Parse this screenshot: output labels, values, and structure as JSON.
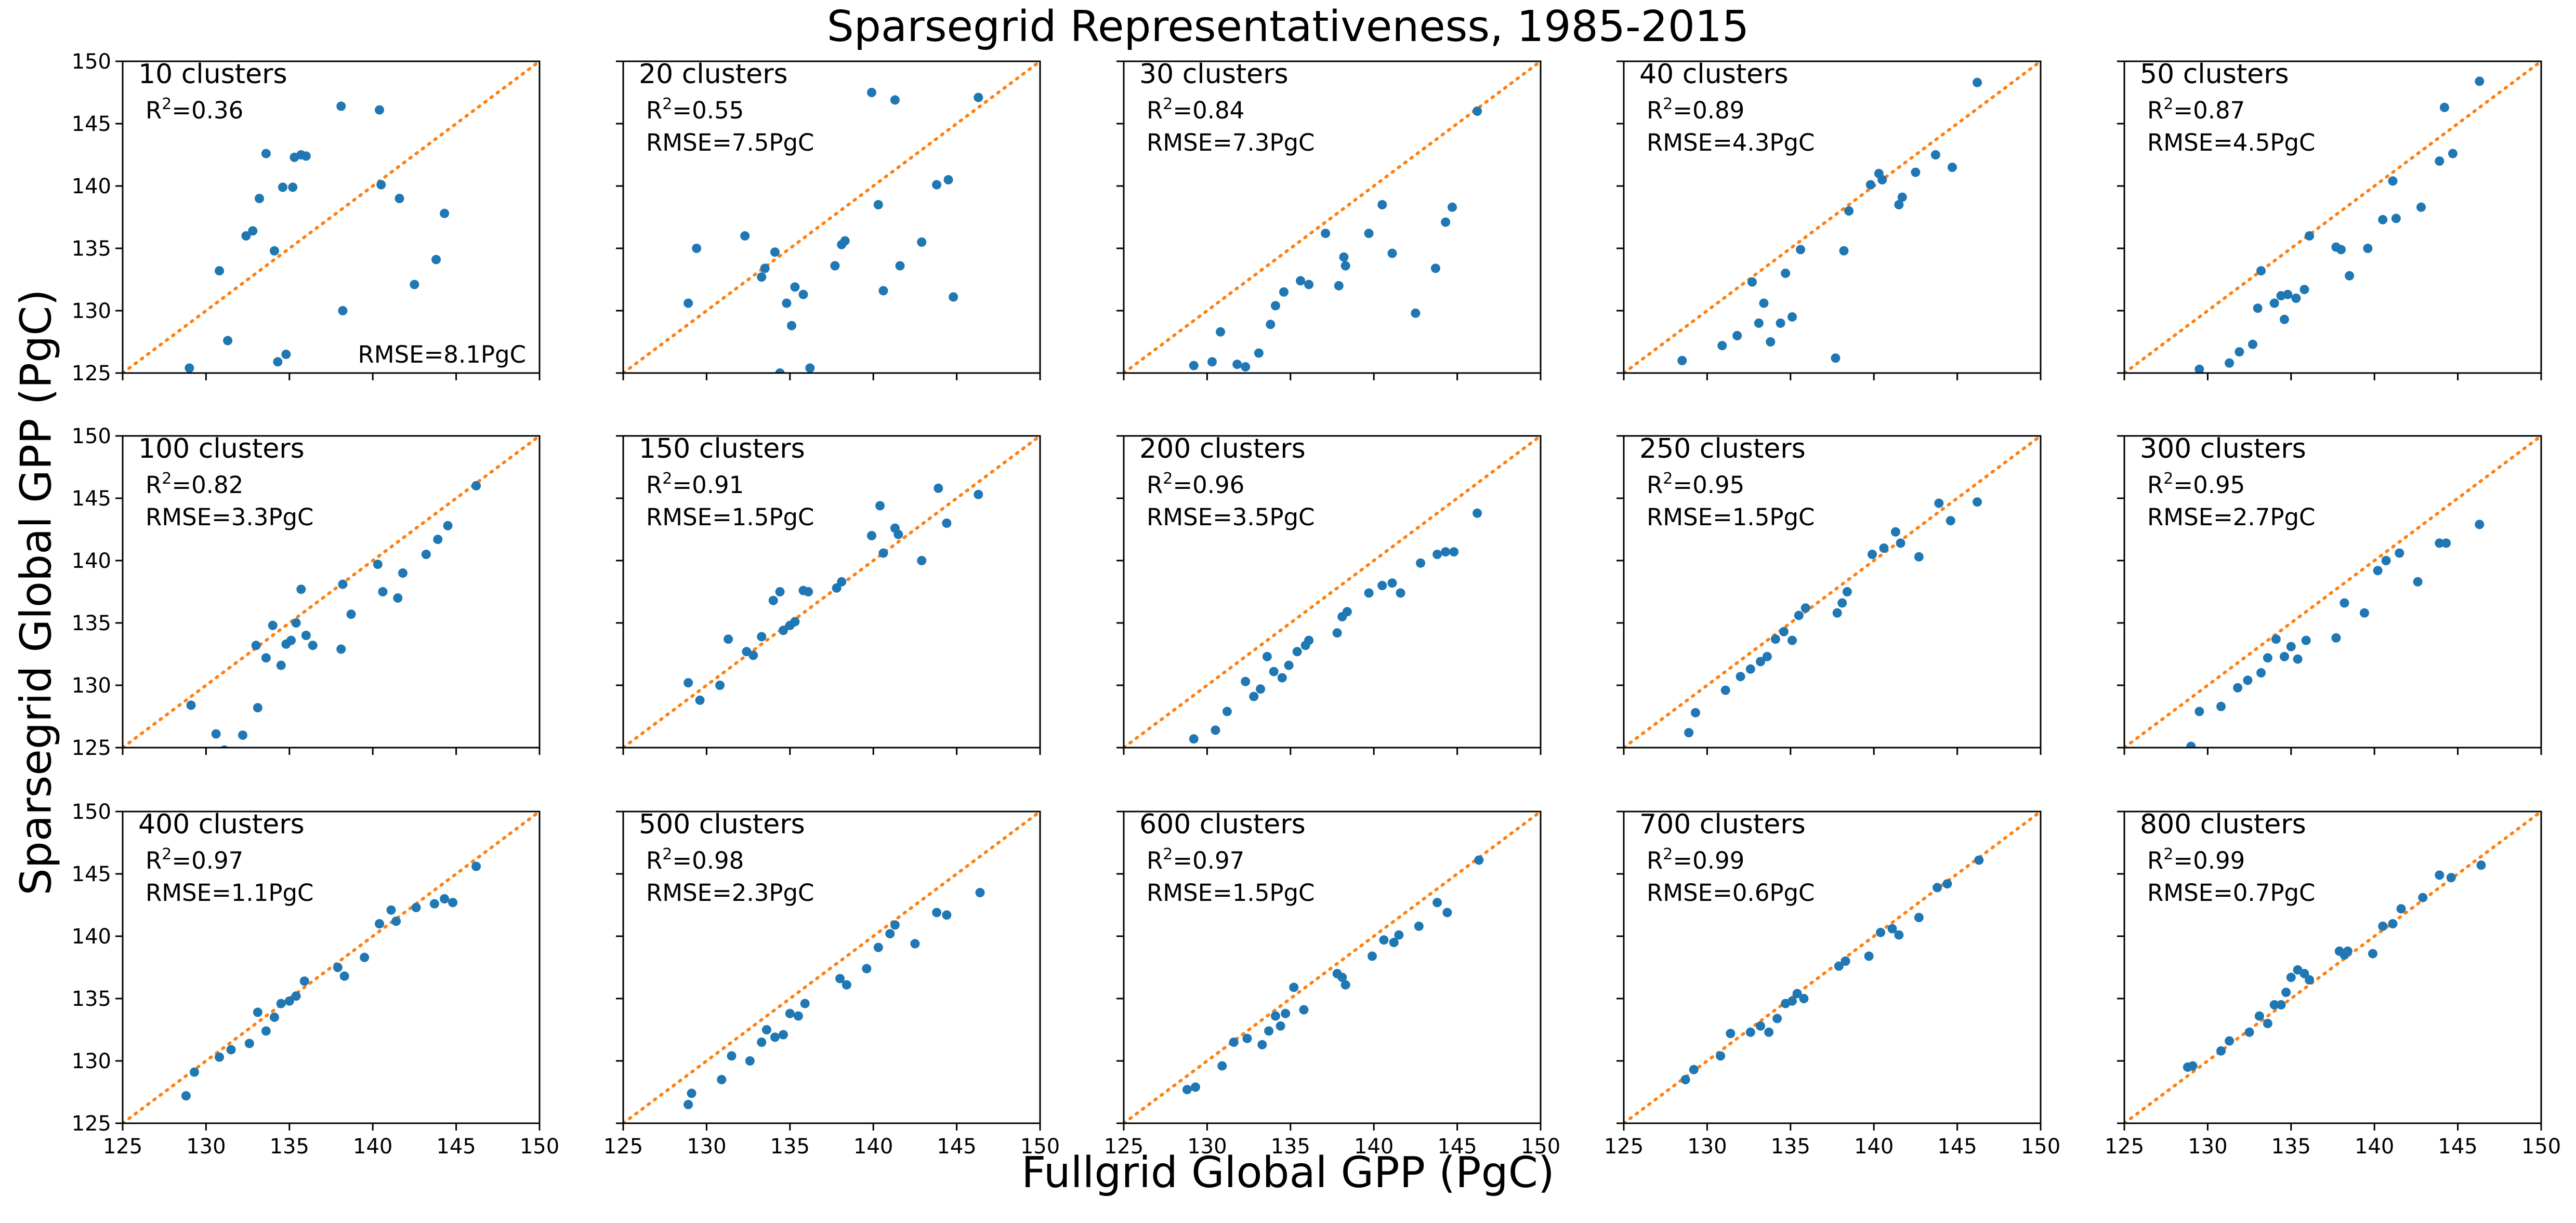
{
  "figure": {
    "title": "Sparsegrid Representativeness, 1985-2015",
    "xlabel": "Fullgrid Global GPP (PgC)",
    "ylabel": "Sparsegrid Global GPP (PgC)"
  },
  "colors": {
    "points": "#1f77b4",
    "one_to_one": "#ff7f0e"
  },
  "chart_data": {
    "type": "scatter",
    "rows": 3,
    "cols": 5,
    "xlim": [
      125,
      150
    ],
    "ylim": [
      125,
      150
    ],
    "xticks": [
      "125",
      "130",
      "135",
      "140",
      "145",
      "150"
    ],
    "yticks": [
      "125",
      "130",
      "135",
      "140",
      "145",
      "150"
    ],
    "one_to_one_line": true,
    "x": [
      [
        129,
        130.8,
        131.3,
        132.4,
        132.8,
        133.2,
        133.6,
        134.1,
        134.3,
        134.6,
        134.8,
        135.2,
        135.3,
        135.7,
        136.0,
        138.1,
        138.2,
        140.4,
        140.5,
        141.6,
        142.5,
        143.8,
        144.3
      ],
      [
        128.9,
        129.4,
        132.3,
        133.3,
        133.5,
        134.1,
        134.4,
        134.8,
        135.1,
        135.3,
        135.8,
        136.2,
        137.7,
        138.1,
        138.3,
        139.9,
        140.3,
        140.6,
        141.3,
        141.6,
        142.9,
        143.8,
        144.5,
        144.8,
        146.3
      ],
      [
        129.2,
        130.3,
        130.8,
        131.8,
        132.3,
        133.1,
        133.8,
        134.1,
        134.6,
        135.6,
        136.1,
        137.1,
        137.9,
        138.2,
        138.3,
        139.7,
        140.5,
        141.1,
        142.5,
        143.7,
        144.3,
        144.7,
        146.2
      ],
      [
        128.5,
        130.9,
        131.8,
        132.7,
        133.1,
        133.4,
        133.8,
        134.4,
        134.7,
        135.1,
        135.6,
        137.7,
        138.2,
        138.5,
        139.8,
        140.3,
        140.5,
        141.5,
        141.7,
        142.5,
        143.7,
        144.7,
        146.2
      ],
      [
        129.5,
        131.3,
        131.9,
        132.7,
        133.0,
        133.2,
        134.0,
        134.4,
        134.6,
        134.8,
        135.3,
        135.8,
        136.1,
        137.7,
        138.0,
        138.5,
        139.6,
        140.5,
        141.1,
        141.3,
        142.8,
        143.9,
        144.2,
        144.7,
        146.3
      ],
      [
        129.1,
        130.6,
        131.1,
        132.2,
        133.0,
        133.1,
        133.6,
        134.0,
        134.5,
        134.8,
        135.1,
        135.4,
        135.7,
        136.0,
        136.4,
        138.1,
        138.2,
        138.7,
        140.3,
        140.6,
        141.5,
        141.8,
        143.2,
        143.9,
        144.5,
        146.2
      ],
      [
        128.9,
        129.6,
        130.8,
        131.3,
        132.4,
        132.8,
        133.3,
        134.0,
        134.4,
        134.6,
        135.0,
        135.3,
        135.8,
        136.1,
        137.8,
        138.1,
        139.9,
        140.4,
        140.6,
        141.3,
        141.5,
        142.9,
        143.9,
        144.4,
        146.3
      ],
      [
        129.2,
        130.5,
        131.2,
        132.3,
        132.8,
        133.2,
        133.6,
        134.0,
        134.5,
        134.9,
        135.4,
        135.9,
        136.1,
        137.8,
        138.1,
        138.4,
        139.7,
        140.5,
        141.1,
        141.6,
        142.8,
        143.8,
        144.3,
        144.8,
        146.2
      ],
      [
        128.9,
        129.3,
        131.1,
        132.0,
        132.6,
        133.2,
        133.6,
        134.1,
        134.6,
        135.1,
        135.5,
        135.9,
        137.8,
        138.1,
        138.4,
        139.9,
        140.6,
        141.3,
        141.6,
        142.7,
        143.9,
        144.6,
        146.2
      ],
      [
        129.0,
        129.5,
        130.8,
        131.8,
        132.4,
        133.2,
        133.6,
        134.1,
        134.6,
        135.0,
        135.4,
        135.9,
        137.7,
        138.2,
        139.4,
        140.2,
        140.7,
        141.5,
        142.6,
        143.9,
        144.3,
        146.3
      ],
      [
        128.8,
        129.3,
        130.8,
        131.5,
        132.6,
        133.1,
        133.6,
        134.1,
        134.5,
        135.0,
        135.4,
        135.9,
        137.9,
        138.3,
        139.5,
        140.4,
        141.1,
        141.4,
        142.6,
        143.7,
        144.3,
        144.8,
        146.2
      ],
      [
        128.9,
        129.1,
        130.9,
        131.5,
        132.6,
        133.3,
        133.6,
        134.1,
        134.6,
        135.0,
        135.5,
        135.9,
        138.0,
        138.4,
        139.6,
        140.3,
        141.0,
        141.3,
        142.5,
        143.8,
        144.4,
        146.4
      ],
      [
        128.8,
        129.3,
        130.9,
        131.6,
        132.4,
        133.3,
        133.7,
        134.1,
        134.4,
        134.7,
        135.2,
        135.8,
        137.8,
        138.1,
        138.3,
        139.9,
        140.6,
        141.2,
        141.5,
        142.7,
        143.8,
        144.4,
        146.3
      ],
      [
        128.7,
        129.2,
        130.8,
        131.4,
        132.6,
        133.2,
        133.7,
        134.2,
        134.7,
        135.1,
        135.4,
        135.8,
        137.9,
        138.3,
        139.7,
        140.4,
        141.1,
        141.5,
        142.7,
        143.8,
        144.4,
        146.3
      ],
      [
        128.8,
        129.1,
        130.8,
        131.3,
        132.5,
        133.1,
        133.6,
        134.0,
        134.4,
        134.7,
        135.0,
        135.4,
        135.8,
        136.1,
        137.9,
        138.2,
        138.4,
        139.9,
        140.5,
        141.1,
        141.6,
        142.9,
        143.9,
        144.6,
        146.4
      ]
    ],
    "y": [
      [
        125.4,
        133.2,
        127.6,
        136.0,
        136.4,
        139.0,
        142.6,
        134.8,
        125.9,
        139.9,
        126.5,
        139.9,
        142.3,
        142.5,
        142.4,
        146.4,
        130.0,
        146.1,
        140.1,
        139.0,
        132.1,
        134.1,
        137.8
      ],
      [
        130.6,
        135.0,
        136.0,
        132.7,
        133.4,
        134.7,
        125.0,
        130.6,
        128.8,
        131.9,
        131.3,
        125.4,
        133.6,
        135.3,
        135.6,
        147.5,
        138.5,
        131.6,
        146.9,
        133.6,
        135.5,
        140.1,
        140.5,
        131.1,
        147.1
      ],
      [
        125.6,
        125.9,
        128.3,
        125.7,
        125.5,
        126.6,
        128.9,
        130.4,
        131.5,
        132.4,
        132.1,
        136.2,
        132.0,
        134.3,
        133.6,
        136.2,
        138.5,
        134.6,
        129.8,
        133.4,
        137.1,
        138.3,
        146.0
      ],
      [
        126.0,
        127.2,
        128.0,
        132.3,
        129.0,
        130.6,
        127.5,
        129.0,
        133.0,
        129.5,
        134.9,
        126.2,
        134.8,
        138.0,
        140.1,
        141.0,
        140.5,
        138.5,
        139.1,
        141.1,
        142.5,
        141.5,
        148.3
      ],
      [
        125.3,
        125.8,
        126.7,
        127.3,
        130.2,
        133.2,
        130.6,
        131.2,
        129.3,
        131.3,
        131.0,
        131.7,
        136.0,
        135.1,
        134.9,
        132.8,
        135.0,
        137.3,
        140.4,
        137.4,
        138.3,
        142.0,
        146.3,
        142.6,
        148.4
      ],
      [
        128.4,
        126.1,
        124.8,
        126.0,
        133.2,
        128.2,
        132.2,
        134.8,
        131.6,
        133.3,
        133.6,
        135.0,
        137.7,
        134.0,
        133.2,
        132.9,
        138.1,
        135.7,
        139.7,
        137.5,
        137.0,
        139.0,
        140.5,
        141.7,
        142.8,
        146.0
      ],
      [
        130.2,
        128.8,
        130.0,
        133.7,
        132.7,
        132.4,
        133.9,
        136.8,
        137.5,
        134.4,
        134.8,
        135.1,
        137.6,
        137.5,
        137.8,
        138.3,
        142.0,
        144.4,
        140.6,
        142.6,
        142.1,
        140.0,
        145.8,
        143.0,
        145.3
      ],
      [
        125.7,
        126.4,
        127.9,
        130.3,
        129.1,
        129.7,
        132.3,
        131.1,
        130.6,
        131.6,
        132.7,
        133.2,
        133.6,
        134.2,
        135.5,
        135.9,
        137.4,
        138.0,
        138.2,
        137.4,
        139.8,
        140.5,
        140.7,
        140.7,
        143.8
      ],
      [
        126.2,
        127.8,
        129.6,
        130.7,
        131.3,
        131.9,
        132.3,
        133.7,
        134.3,
        133.6,
        135.6,
        136.2,
        135.8,
        136.6,
        137.5,
        140.5,
        141.0,
        142.3,
        141.4,
        140.3,
        144.6,
        143.2,
        144.7
      ],
      [
        125.1,
        127.9,
        128.3,
        129.8,
        130.4,
        131.0,
        132.2,
        133.7,
        132.3,
        133.1,
        132.1,
        133.6,
        133.8,
        136.6,
        135.8,
        139.2,
        140.0,
        140.6,
        138.3,
        141.4,
        141.4,
        142.9
      ],
      [
        127.2,
        129.1,
        130.3,
        130.9,
        131.4,
        133.9,
        132.4,
        133.5,
        134.6,
        134.8,
        135.2,
        136.4,
        137.5,
        136.8,
        138.3,
        141.0,
        142.1,
        141.2,
        142.3,
        142.6,
        143.0,
        142.7,
        145.6
      ],
      [
        126.5,
        127.4,
        128.5,
        130.4,
        130.0,
        131.5,
        132.5,
        131.9,
        132.1,
        133.8,
        133.6,
        134.6,
        136.6,
        136.1,
        137.4,
        139.1,
        140.2,
        140.9,
        139.4,
        141.9,
        141.7,
        143.5
      ],
      [
        127.7,
        127.9,
        129.6,
        131.5,
        131.8,
        131.3,
        132.4,
        133.6,
        132.8,
        133.8,
        135.9,
        134.1,
        137.0,
        136.7,
        136.1,
        138.4,
        139.7,
        139.5,
        140.1,
        140.8,
        142.7,
        141.9,
        146.1
      ],
      [
        128.5,
        129.3,
        130.4,
        132.2,
        132.3,
        132.8,
        132.3,
        133.4,
        134.6,
        134.8,
        135.4,
        135.0,
        137.6,
        138.0,
        138.4,
        140.3,
        140.6,
        140.1,
        141.5,
        143.9,
        144.2,
        146.1
      ],
      [
        129.5,
        129.6,
        130.8,
        131.6,
        132.3,
        133.6,
        133.0,
        134.5,
        134.5,
        135.5,
        136.7,
        137.3,
        137.0,
        136.5,
        138.8,
        138.5,
        138.8,
        138.6,
        140.8,
        141.0,
        142.2,
        143.1,
        144.9,
        144.7,
        145.7
      ]
    ],
    "panels": [
      {
        "label": "10 clusters",
        "r2": "0.36",
        "rmse": "RMSE=8.1PgC"
      },
      {
        "label": "20 clusters",
        "r2": "0.55",
        "rmse": "RMSE=7.5PgC"
      },
      {
        "label": "30 clusters",
        "r2": "0.84",
        "rmse": "RMSE=7.3PgC"
      },
      {
        "label": "40 clusters",
        "r2": "0.89",
        "rmse": "RMSE=4.3PgC"
      },
      {
        "label": "50 clusters",
        "r2": "0.87",
        "rmse": "RMSE=4.5PgC"
      },
      {
        "label": "100 clusters",
        "r2": "0.82",
        "rmse": "RMSE=3.3PgC"
      },
      {
        "label": "150 clusters",
        "r2": "0.91",
        "rmse": "RMSE=1.5PgC"
      },
      {
        "label": "200 clusters",
        "r2": "0.96",
        "rmse": "RMSE=3.5PgC"
      },
      {
        "label": "250 clusters",
        "r2": "0.95",
        "rmse": "RMSE=1.5PgC"
      },
      {
        "label": "300 clusters",
        "r2": "0.95",
        "rmse": "RMSE=2.7PgC"
      },
      {
        "label": "400 clusters",
        "r2": "0.97",
        "rmse": "RMSE=1.1PgC"
      },
      {
        "label": "500 clusters",
        "r2": "0.98",
        "rmse": "RMSE=2.3PgC"
      },
      {
        "label": "600 clusters",
        "r2": "0.97",
        "rmse": "RMSE=1.5PgC"
      },
      {
        "label": "700 clusters",
        "r2": "0.99",
        "rmse": "RMSE=0.6PgC"
      },
      {
        "label": "800 clusters",
        "r2": "0.99",
        "rmse": "RMSE=0.7PgC"
      }
    ]
  }
}
